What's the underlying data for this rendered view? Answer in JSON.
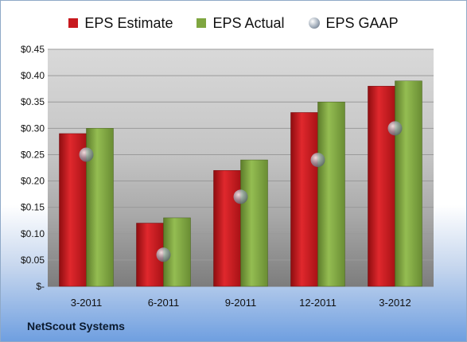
{
  "legend": {
    "estimate_label": "EPS Estimate",
    "actual_label": "EPS Actual",
    "gaap_label": "EPS GAAP"
  },
  "footer": {
    "company": "NetScout Systems"
  },
  "colors": {
    "estimate": "#c8191e",
    "actual": "#7fa640",
    "gaap": "#9aa6b4"
  },
  "chart_data": {
    "type": "bar",
    "categories": [
      "3-2011",
      "6-2011",
      "9-2011",
      "12-2011",
      "3-2012"
    ],
    "series": [
      {
        "name": "EPS Estimate",
        "values": [
          0.29,
          0.12,
          0.22,
          0.33,
          0.38
        ]
      },
      {
        "name": "EPS Actual",
        "values": [
          0.3,
          0.13,
          0.24,
          0.35,
          0.39
        ]
      },
      {
        "name": "EPS GAAP",
        "values": [
          0.25,
          0.06,
          0.17,
          0.24,
          0.3
        ]
      }
    ],
    "ylim": [
      0,
      0.45
    ],
    "yticks": [
      0,
      0.05,
      0.1,
      0.15,
      0.2,
      0.25,
      0.3,
      0.35,
      0.4,
      0.45
    ],
    "ytick_labels": [
      "$-",
      "$0.05",
      "$0.10",
      "$0.15",
      "$0.20",
      "$0.25",
      "$0.30",
      "$0.35",
      "$0.40",
      "$0.45"
    ],
    "grid": true,
    "legend_position": "top"
  }
}
